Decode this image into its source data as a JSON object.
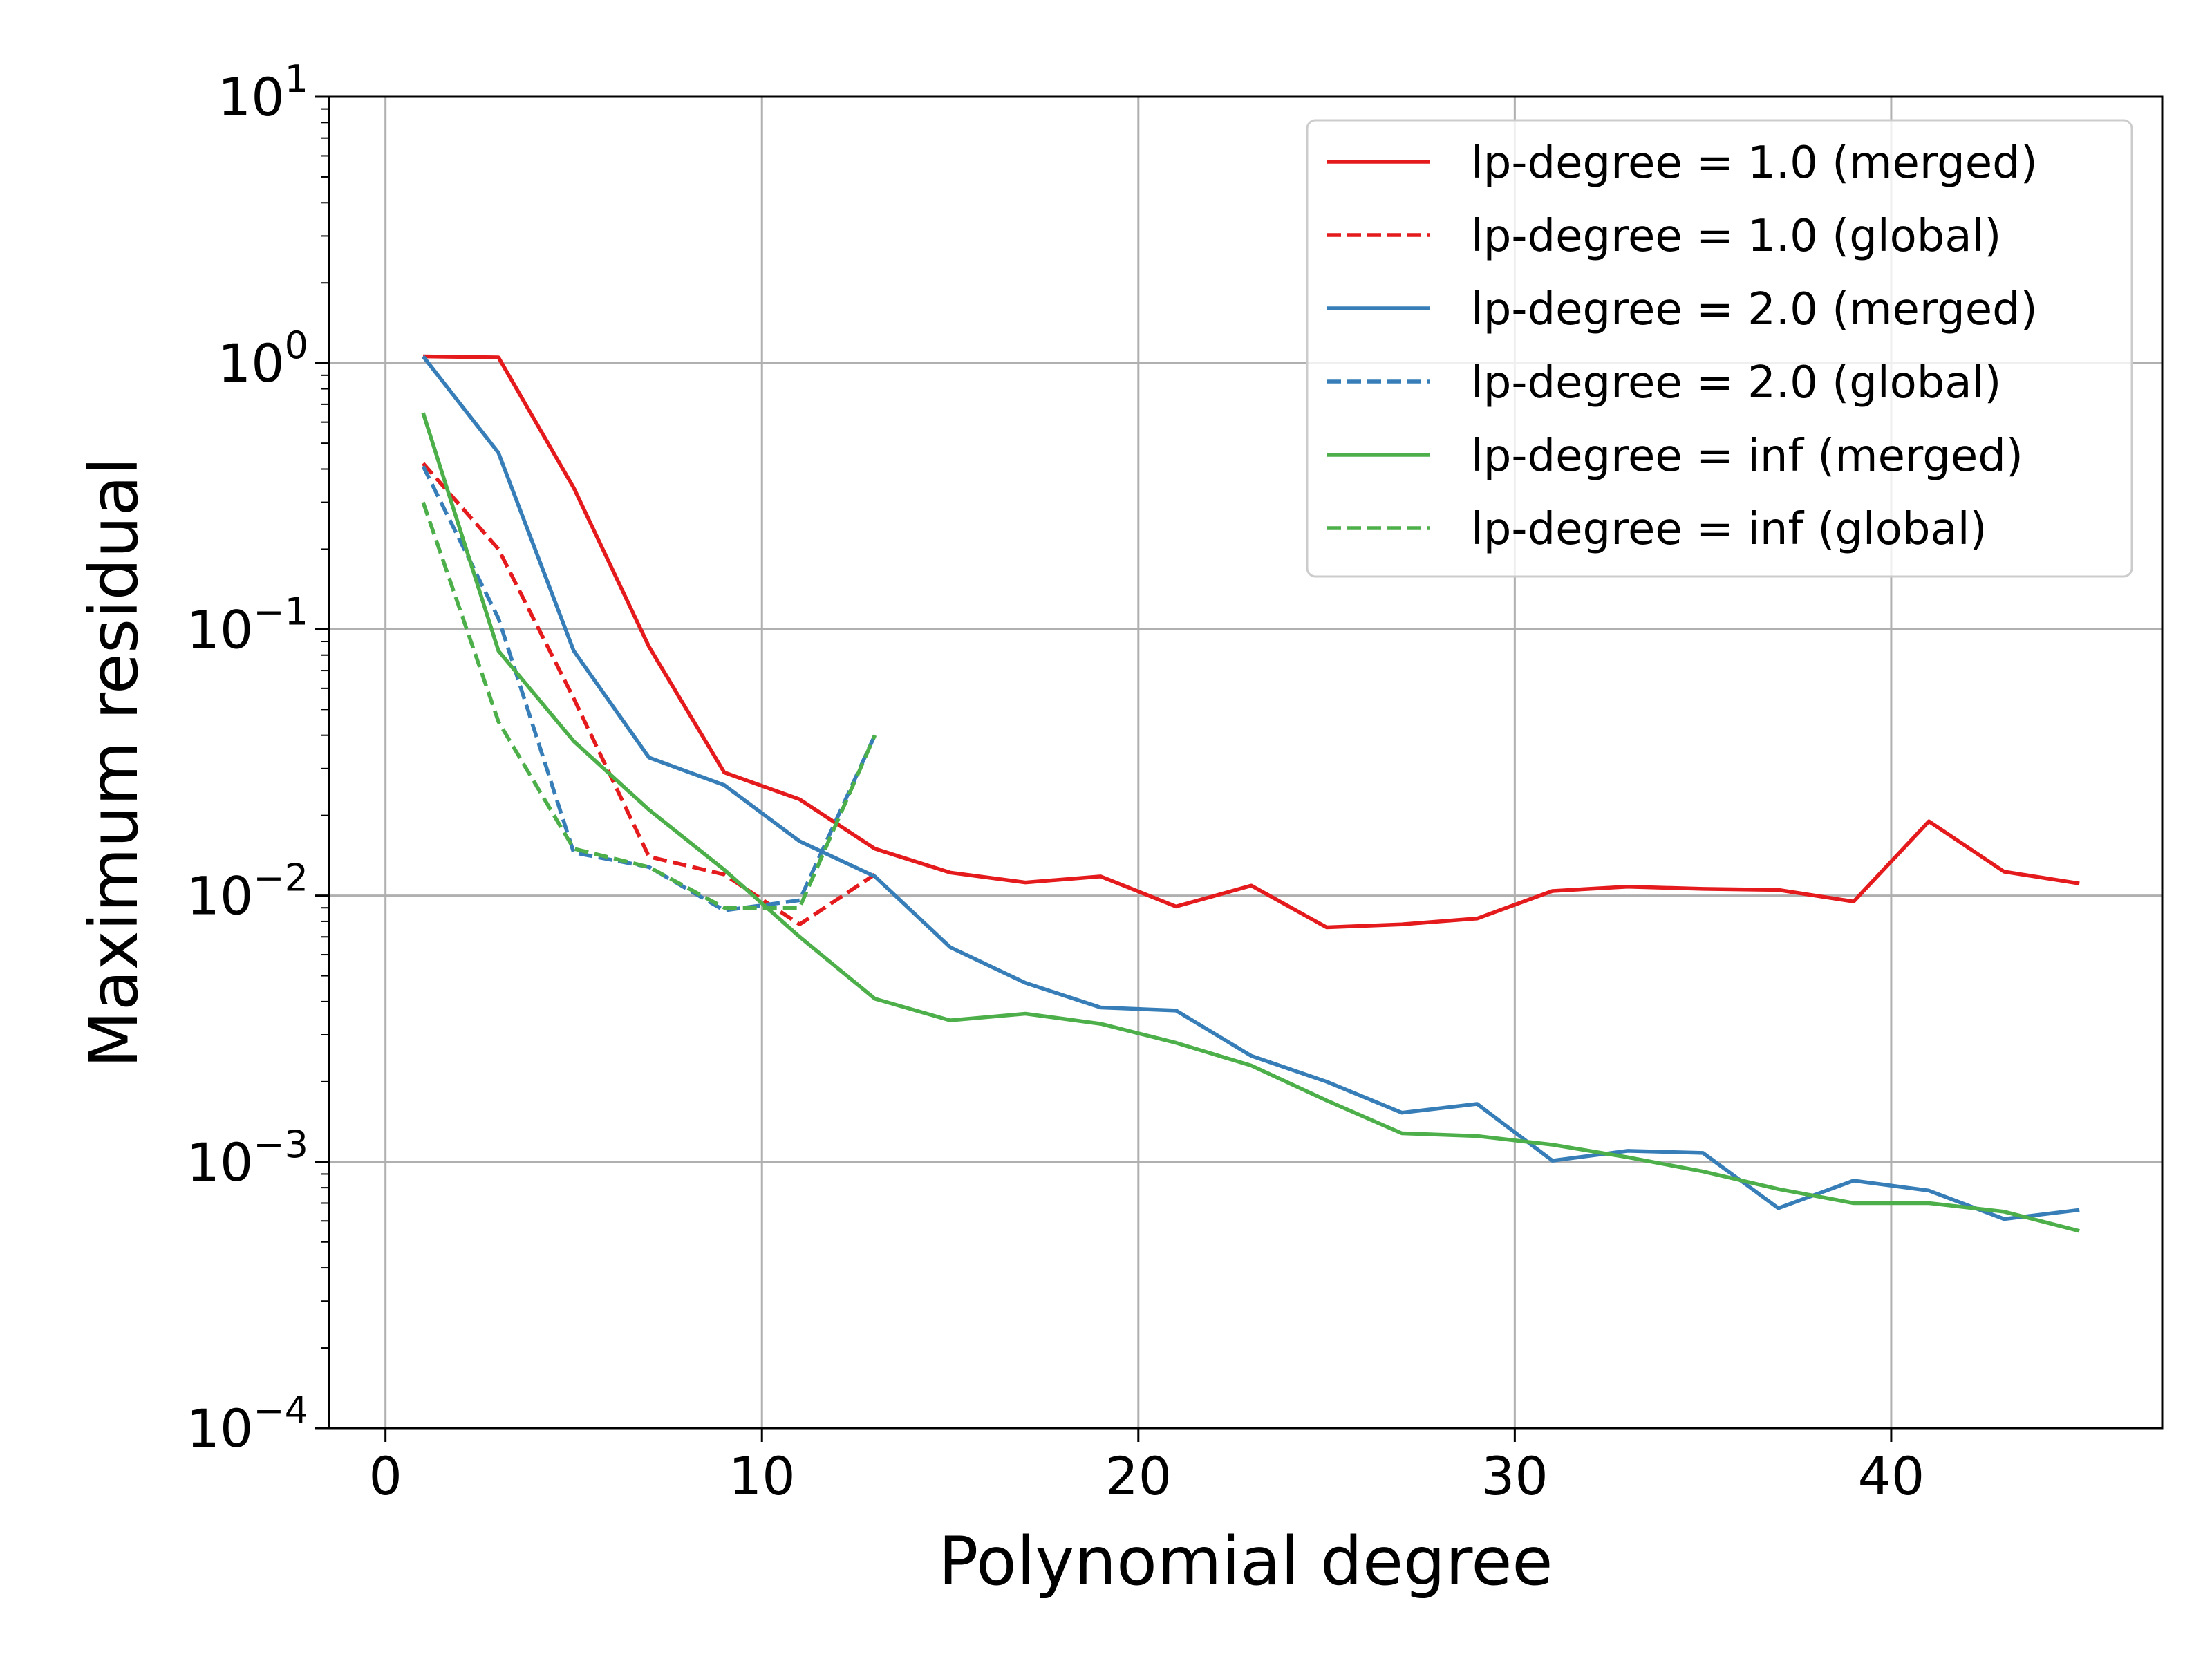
{
  "chart_data": {
    "type": "line",
    "title": "",
    "xlabel": "Polynomial degree",
    "ylabel": "Maximum residual",
    "xscale": "linear",
    "yscale": "log",
    "xlim": [
      -1.5,
      47.2
    ],
    "ylim": [
      0.0001,
      10
    ],
    "xticks": [
      0,
      10,
      20,
      30,
      40
    ],
    "xtick_labels": [
      "0",
      "10",
      "20",
      "30",
      "40"
    ],
    "yticks": [
      0.0001,
      0.001,
      0.01,
      0.1,
      1,
      10
    ],
    "ytick_bases": [
      "10",
      "10",
      "10",
      "10",
      "10",
      "10"
    ],
    "ytick_exponents": [
      "−4",
      "−3",
      "−2",
      "−1",
      "0",
      "1"
    ],
    "grid": true,
    "legend_position": "top-right",
    "series": [
      {
        "name": "lp-degree = 1.0 (merged)",
        "color": "#e41a1c",
        "linestyle": "solid",
        "x": [
          1,
          3,
          5,
          7,
          9,
          11,
          13,
          15,
          17,
          19,
          21,
          23,
          25,
          27,
          29,
          31,
          33,
          35,
          37,
          39,
          41,
          43,
          45
        ],
        "y": [
          1.06,
          1.05,
          0.34,
          0.086,
          0.029,
          0.023,
          0.015,
          0.0122,
          0.0112,
          0.0118,
          0.0091,
          0.0109,
          0.0076,
          0.0078,
          0.0082,
          0.0104,
          0.0108,
          0.0106,
          0.0105,
          0.0095,
          0.019,
          0.0123,
          0.0111
        ]
      },
      {
        "name": "lp-degree = 1.0 (global)",
        "color": "#e41a1c",
        "linestyle": "dashed",
        "x": [
          1,
          3,
          5,
          7,
          9,
          11,
          13
        ],
        "y": [
          0.42,
          0.2,
          0.055,
          0.014,
          0.012,
          0.0078,
          0.012
        ]
      },
      {
        "name": "lp-degree = 2.0 (merged)",
        "color": "#377eb8",
        "linestyle": "solid",
        "x": [
          1,
          3,
          5,
          7,
          9,
          11,
          13,
          15,
          17,
          19,
          21,
          23,
          25,
          27,
          29,
          31,
          33,
          35,
          37,
          39,
          41,
          43,
          45
        ],
        "y": [
          1.06,
          0.46,
          0.083,
          0.033,
          0.026,
          0.016,
          0.0118,
          0.0064,
          0.0047,
          0.0038,
          0.0037,
          0.0025,
          0.002,
          0.00153,
          0.00165,
          0.00101,
          0.0011,
          0.00108,
          0.00067,
          0.00085,
          0.00078,
          0.00061,
          0.00066
        ]
      },
      {
        "name": "lp-degree = 2.0 (global)",
        "color": "#377eb8",
        "linestyle": "dashed",
        "x": [
          1,
          3,
          5,
          7,
          9,
          11,
          13
        ],
        "y": [
          0.41,
          0.11,
          0.0145,
          0.0128,
          0.0088,
          0.0096,
          0.04
        ]
      },
      {
        "name": "lp-degree = inf (merged)",
        "color": "#4daf4a",
        "linestyle": "solid",
        "x": [
          1,
          3,
          5,
          7,
          9,
          11,
          13,
          15,
          17,
          19,
          21,
          23,
          25,
          27,
          29,
          31,
          33,
          35,
          37,
          39,
          41,
          43,
          45
        ],
        "y": [
          0.65,
          0.083,
          0.038,
          0.021,
          0.0125,
          0.007,
          0.0041,
          0.0034,
          0.0036,
          0.0033,
          0.0028,
          0.0023,
          0.0017,
          0.00128,
          0.00125,
          0.00116,
          0.00104,
          0.00092,
          0.00079,
          0.0007,
          0.0007,
          0.00065,
          0.00055
        ]
      },
      {
        "name": "lp-degree = inf (global)",
        "color": "#4daf4a",
        "linestyle": "dashed",
        "x": [
          1,
          3,
          5,
          7,
          9,
          11,
          13
        ],
        "y": [
          0.3,
          0.045,
          0.015,
          0.0128,
          0.009,
          0.009,
          0.04
        ]
      }
    ]
  }
}
